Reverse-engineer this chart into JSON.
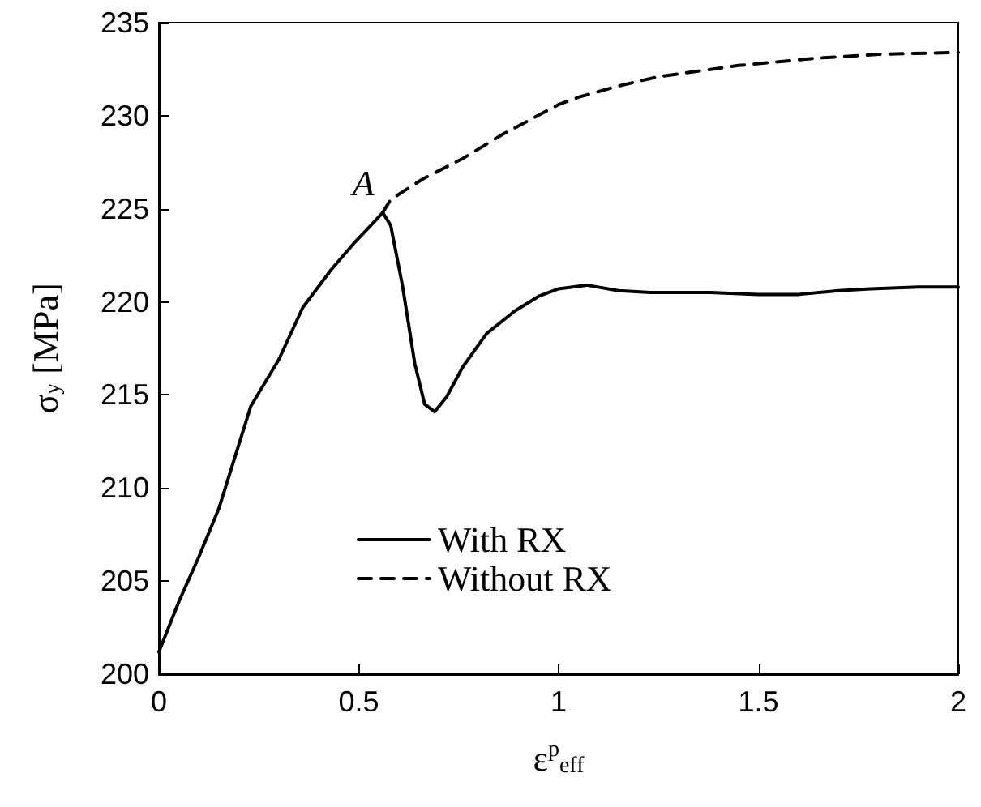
{
  "chart_data": {
    "type": "line",
    "xlabel": "ε$^{p}$$_{eff}$",
    "ylabel": "σ$_{y}$ [MPa]",
    "xlim": [
      0,
      2
    ],
    "xticks": [
      0,
      0.5,
      1,
      1.5,
      2
    ],
    "ylim": [
      200,
      235
    ],
    "yticks": [
      200,
      205,
      210,
      215,
      220,
      225,
      230,
      235
    ],
    "grid": false,
    "legend": "bottom",
    "marker": "none",
    "annotations": [
      {
        "text": "A",
        "x": 0.56,
        "y": 224.8
      }
    ],
    "series": [
      {
        "name": "With RX",
        "color": "#000000",
        "line_style": "solid",
        "x": [
          0,
          0.05,
          0.1,
          0.15,
          0.23,
          0.3,
          0.36,
          0.43,
          0.49,
          0.53,
          0.56,
          0.58,
          0.61,
          0.64,
          0.665,
          0.69,
          0.72,
          0.76,
          0.82,
          0.89,
          0.95,
          1.0,
          1.07,
          1.15,
          1.23,
          1.38,
          1.5,
          1.6,
          1.7,
          1.78,
          1.9,
          2.0
        ],
        "values": [
          201.2,
          203.9,
          206.3,
          208.9,
          214.4,
          216.9,
          219.7,
          221.7,
          223.2,
          224.1,
          224.8,
          224.1,
          220.8,
          216.7,
          214.5,
          214.1,
          214.9,
          216.5,
          218.3,
          219.5,
          220.3,
          220.7,
          220.9,
          220.6,
          220.5,
          220.5,
          220.4,
          220.4,
          220.6,
          220.7,
          220.8,
          220.8
        ]
      },
      {
        "name": "Without RX",
        "color": "#000000",
        "line_style": "dashed",
        "x": [
          0.56,
          0.58,
          0.66,
          0.76,
          0.86,
          1.0,
          1.05,
          1.15,
          1.25,
          1.35,
          1.45,
          1.55,
          1.65,
          1.8,
          2.0
        ],
        "values": [
          224.8,
          225.5,
          226.6,
          227.7,
          229.0,
          230.6,
          231.0,
          231.6,
          232.1,
          232.4,
          232.7,
          232.9,
          233.1,
          233.3,
          233.4
        ]
      }
    ]
  }
}
